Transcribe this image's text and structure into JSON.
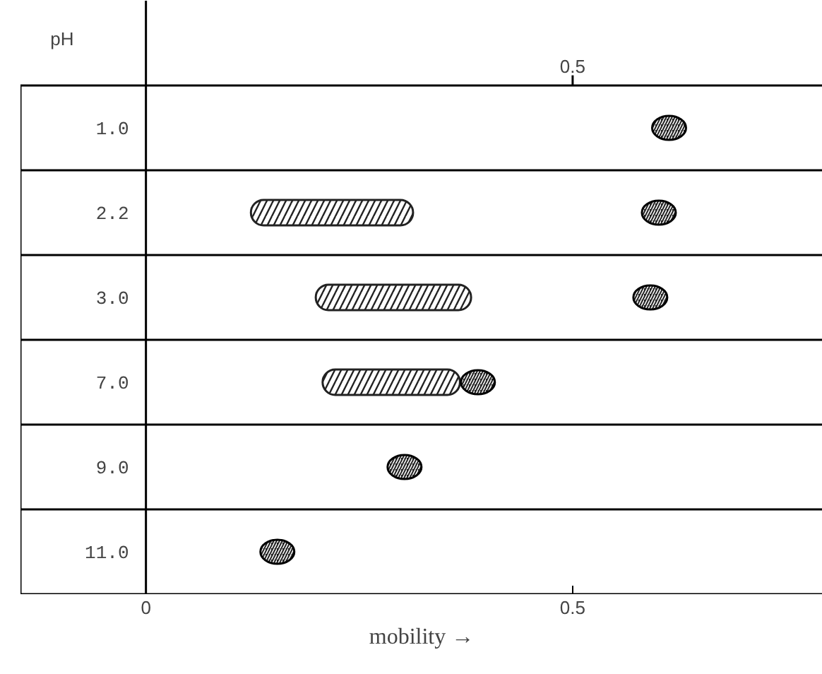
{
  "chart_data": {
    "type": "bar",
    "orientation": "horizontal",
    "ylabel": "pH",
    "xlabel": "mobility →",
    "categories": [
      "1.0",
      "2.2",
      "3.0",
      "7.0",
      "9.0",
      "11.0"
    ],
    "series": [
      {
        "color": "#222222",
        "base": [
          null,
          0.123,
          0.199,
          0.207,
          null,
          null
        ],
        "values": [
          null,
          0.19,
          0.182,
          0.161,
          null,
          null
        ]
      },
      {
        "type": "scatter",
        "color": "#222222",
        "values": [
          0.613,
          0.601,
          0.591,
          0.389,
          0.303,
          0.154
        ]
      }
    ],
    "xlim": [
      -0.147,
      0.793
    ],
    "xticks": [
      0,
      0.5
    ],
    "annotations": [
      "0.5"
    ],
    "grid": "y"
  }
}
